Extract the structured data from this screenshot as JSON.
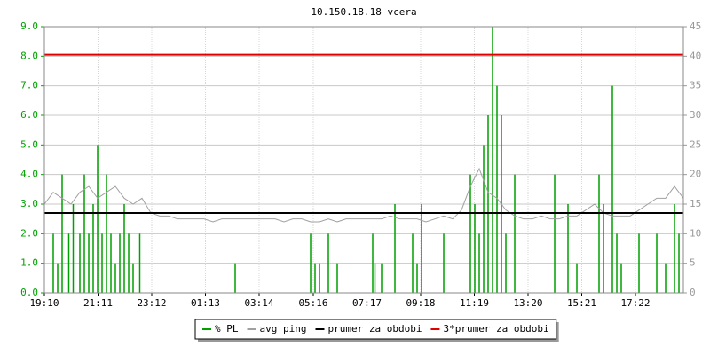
{
  "chart_data": {
    "type": "line",
    "title": "10.150.18.18 vcera",
    "xlim": [
      0,
      1440
    ],
    "xticks": [
      {
        "value": 0,
        "label": "19:10"
      },
      {
        "value": 121,
        "label": "21:11"
      },
      {
        "value": 242,
        "label": "23:12"
      },
      {
        "value": 363,
        "label": "01:13"
      },
      {
        "value": 484,
        "label": "03:14"
      },
      {
        "value": 606,
        "label": "05:16"
      },
      {
        "value": 727,
        "label": "07:17"
      },
      {
        "value": 848,
        "label": "09:18"
      },
      {
        "value": 969,
        "label": "11:19"
      },
      {
        "value": 1090,
        "label": "13:20"
      },
      {
        "value": 1211,
        "label": "15:21"
      },
      {
        "value": 1332,
        "label": "17:22"
      }
    ],
    "ylim": [
      0,
      9
    ],
    "yticks": [
      {
        "value": 0,
        "label": "0.0"
      },
      {
        "value": 1,
        "label": "1.0"
      },
      {
        "value": 2,
        "label": "2.0"
      },
      {
        "value": 3,
        "label": "3.0"
      },
      {
        "value": 4,
        "label": "4.0"
      },
      {
        "value": 5,
        "label": "5.0"
      },
      {
        "value": 6,
        "label": "6.0"
      },
      {
        "value": 7,
        "label": "7.0"
      },
      {
        "value": 8,
        "label": "8.0"
      },
      {
        "value": 9,
        "label": "9.0"
      }
    ],
    "y2lim": [
      0,
      45
    ],
    "y2ticks": [
      0,
      5,
      10,
      15,
      20,
      25,
      30,
      35,
      40,
      45
    ],
    "grid": true,
    "series": [
      {
        "name": "% PL",
        "color": "#00a000",
        "style": "bars",
        "axis": "y",
        "x": [
          20,
          30,
          40,
          55,
          65,
          80,
          90,
          100,
          110,
          120,
          130,
          140,
          150,
          160,
          170,
          180,
          190,
          200,
          215,
          430,
          600,
          610,
          620,
          640,
          660,
          740,
          745,
          760,
          790,
          830,
          840,
          850,
          900,
          960,
          970,
          980,
          990,
          1000,
          1010,
          1020,
          1030,
          1040,
          1060,
          1150,
          1180,
          1200,
          1250,
          1260,
          1280,
          1290,
          1300,
          1340,
          1380,
          1400,
          1420,
          1430
        ],
        "values": [
          2,
          1,
          4,
          2,
          3,
          2,
          4,
          2,
          3,
          5,
          2,
          4,
          2,
          1,
          2,
          3,
          2,
          1,
          2,
          1,
          2,
          1,
          1,
          2,
          1,
          2,
          1,
          1,
          3,
          2,
          1,
          3,
          2,
          4,
          3,
          2,
          5,
          6,
          9,
          7,
          6,
          2,
          4,
          4,
          3,
          1,
          4,
          3,
          7,
          2,
          1,
          2,
          2,
          1,
          3,
          2
        ]
      },
      {
        "name": "avg ping",
        "color": "#a0a0a0",
        "style": "line",
        "axis": "y2",
        "x": [
          0,
          20,
          40,
          60,
          80,
          100,
          120,
          140,
          160,
          180,
          200,
          220,
          240,
          260,
          280,
          300,
          320,
          340,
          360,
          380,
          400,
          420,
          440,
          460,
          480,
          500,
          520,
          540,
          560,
          580,
          600,
          620,
          640,
          660,
          680,
          700,
          720,
          740,
          760,
          780,
          800,
          820,
          840,
          860,
          880,
          900,
          920,
          940,
          960,
          980,
          1000,
          1020,
          1040,
          1060,
          1080,
          1100,
          1120,
          1140,
          1160,
          1180,
          1200,
          1220,
          1240,
          1260,
          1280,
          1300,
          1320,
          1340,
          1360,
          1380,
          1400,
          1420,
          1440
        ],
        "values": [
          15,
          17,
          16,
          15,
          17,
          18,
          16,
          17,
          18,
          16,
          15,
          16,
          13.5,
          13,
          13,
          12.5,
          12.5,
          12.5,
          12.5,
          12,
          12.5,
          12.5,
          12.5,
          12.5,
          12.5,
          12.5,
          12.5,
          12,
          12.5,
          12.5,
          12,
          12,
          12.5,
          12,
          12.5,
          12.5,
          12.5,
          12.5,
          12.5,
          13,
          12.5,
          12.5,
          12.5,
          12,
          12.5,
          13,
          12.5,
          14,
          18,
          21,
          17,
          16,
          14,
          13,
          12.5,
          12.5,
          13,
          12.5,
          12.5,
          13,
          13,
          14,
          15,
          13.5,
          13,
          13,
          13,
          14,
          15,
          16,
          16,
          18,
          16
        ]
      }
    ],
    "reference_lines": [
      {
        "name": "prumer za obdobi",
        "color": "#000000",
        "value": 2.7,
        "axis": "y"
      },
      {
        "name": "3*prumer za obdobi",
        "color": "#e00000",
        "value": 8.05,
        "axis": "y"
      }
    ]
  }
}
